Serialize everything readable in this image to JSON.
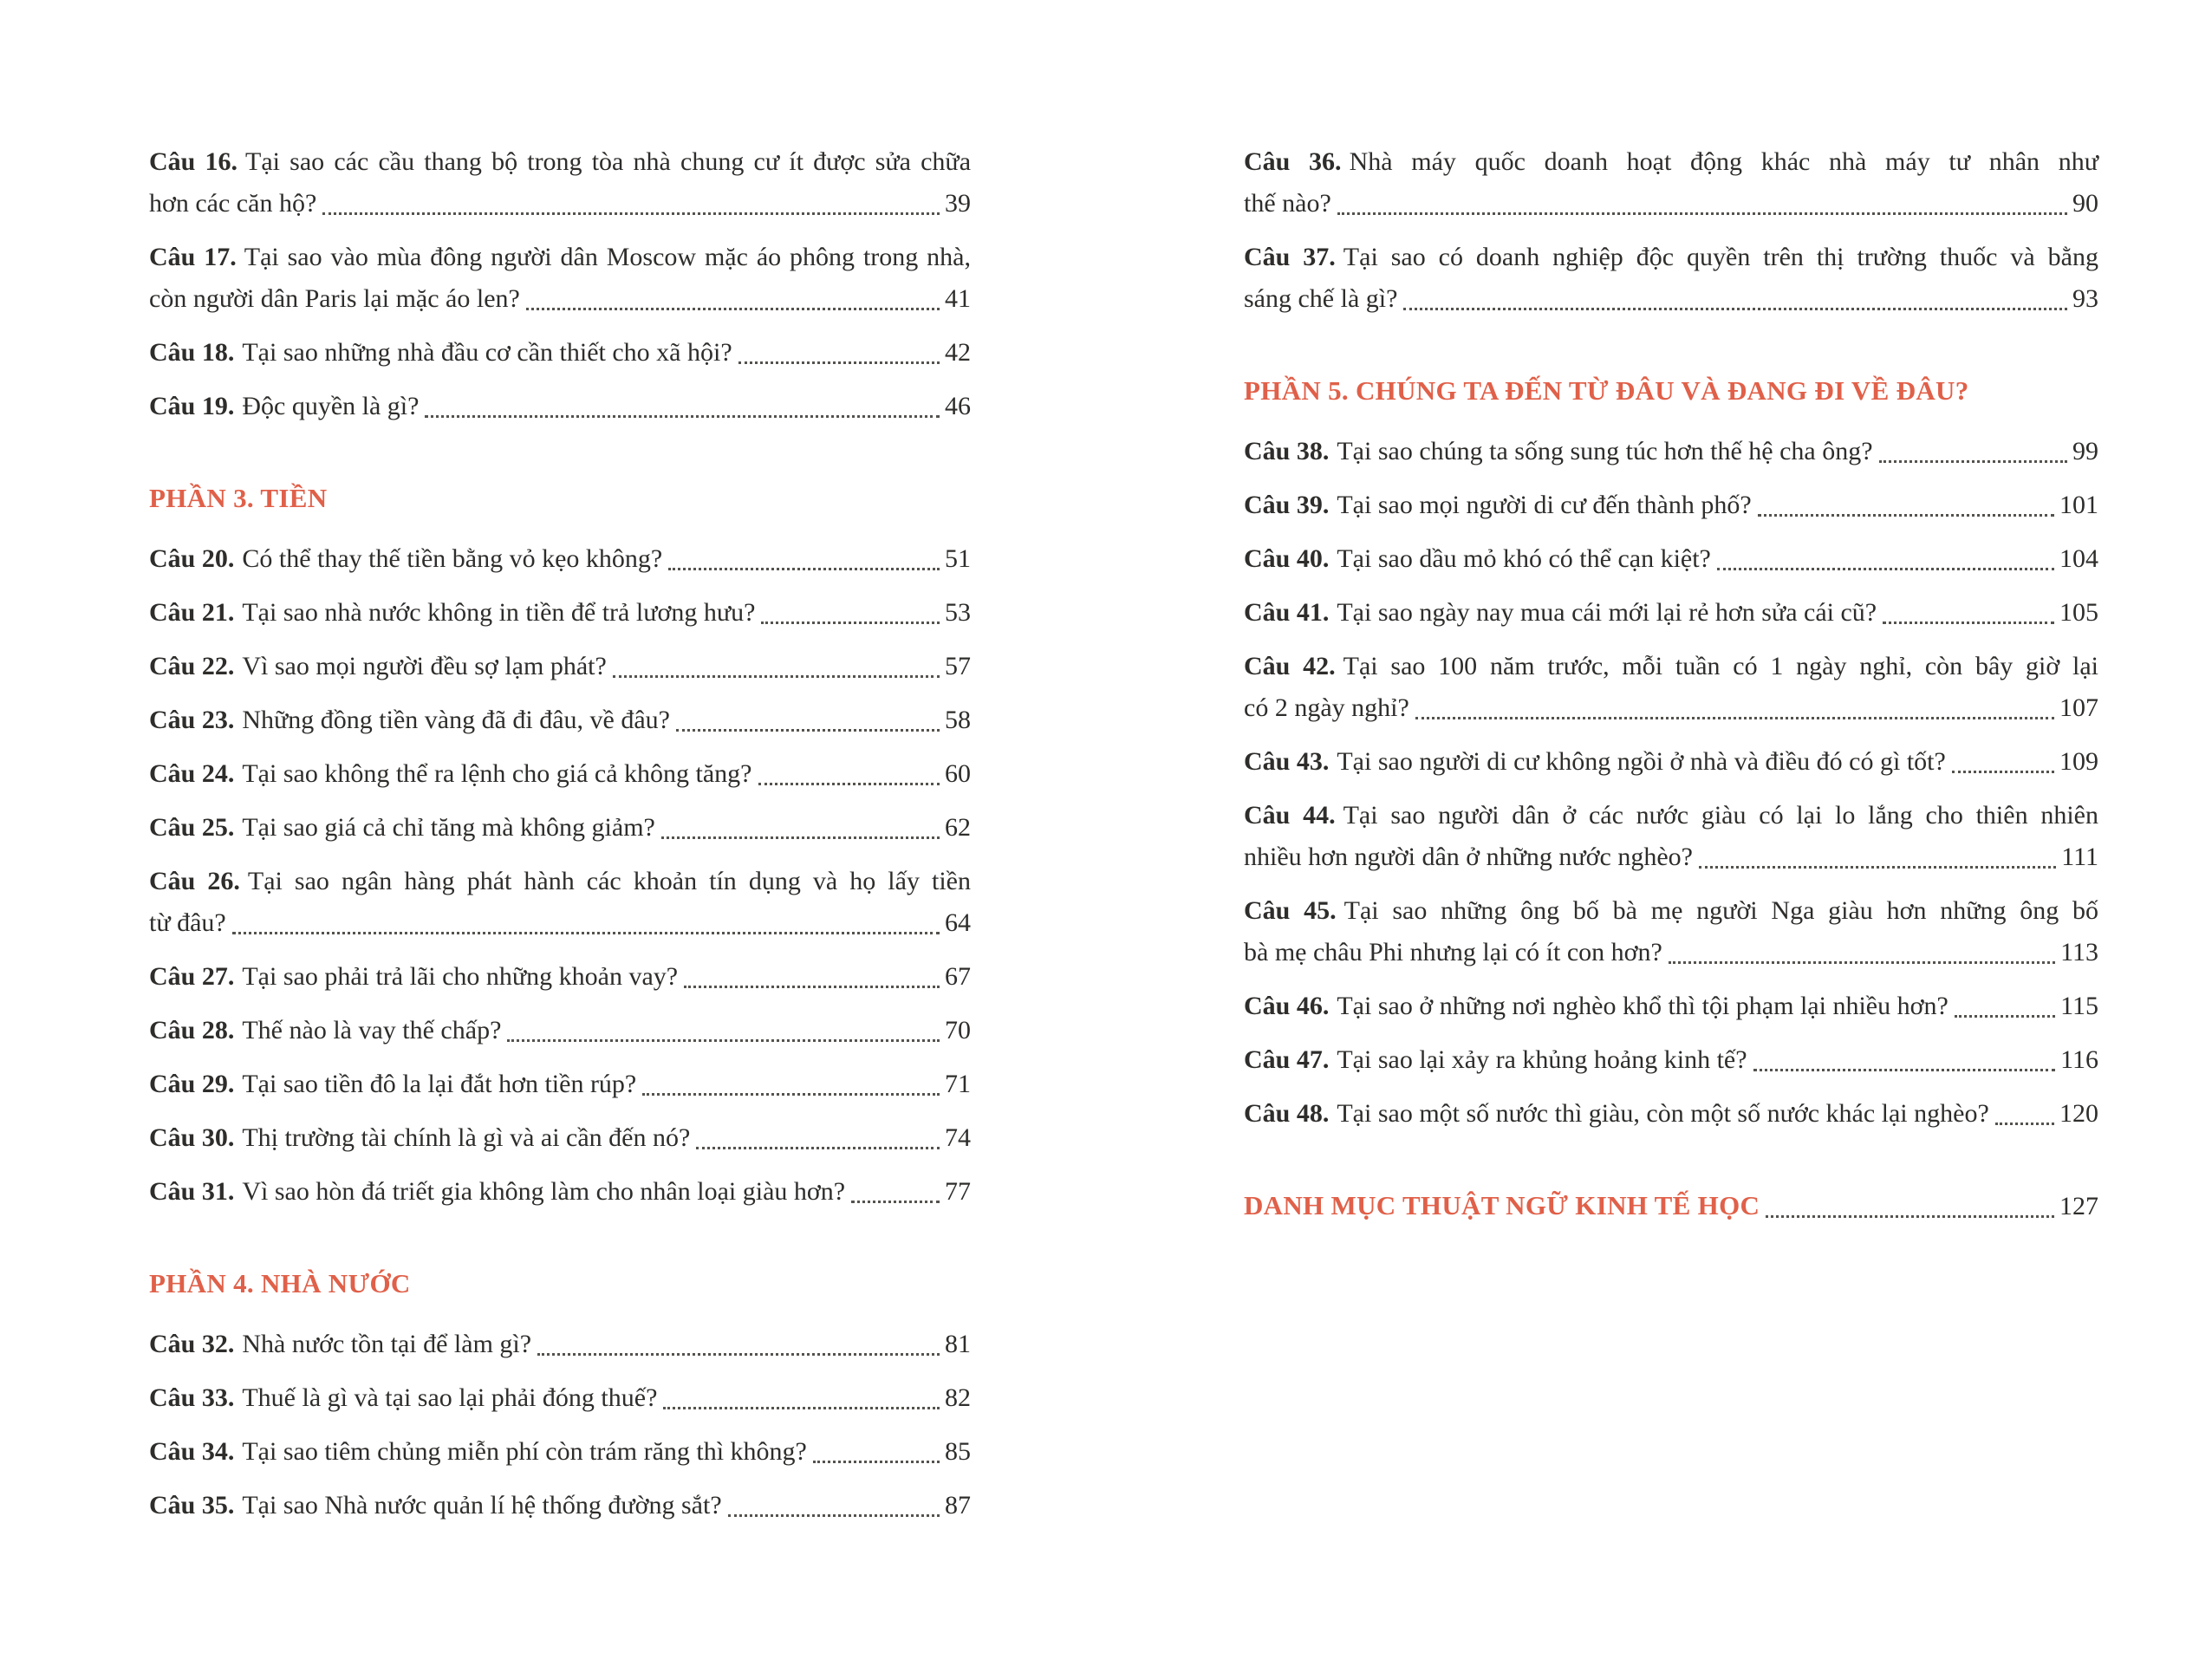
{
  "page": {
    "accent_color": "#e06049",
    "text_color": "#2e2d2b",
    "dot_color": "#55524e"
  },
  "columns": [
    {
      "side": "left",
      "blocks": [
        {
          "type": "entries",
          "items": [
            {
              "no": "Câu 16.",
              "lines": [
                "Tại sao các cầu thang bộ trong tòa nhà chung cư ít được sửa chữa",
                "hơn các căn hộ?"
              ],
              "page": "39"
            },
            {
              "no": "Câu 17.",
              "lines": [
                "Tại sao vào mùa đông người dân Moscow mặc áo phông trong nhà,",
                "còn người dân Paris lại mặc áo len?"
              ],
              "page": "41"
            },
            {
              "no": "Câu 18.",
              "lines": [
                "Tại sao những nhà đầu cơ cần thiết cho xã hội?"
              ],
              "page": "42"
            },
            {
              "no": "Câu 19.",
              "lines": [
                "Độc quyền là gì?"
              ],
              "page": "46"
            }
          ]
        },
        {
          "type": "section",
          "title": "PHẦN 3. TIỀN"
        },
        {
          "type": "entries",
          "items": [
            {
              "no": "Câu 20.",
              "lines": [
                "Có thể thay thế tiền bằng vỏ kẹo không?"
              ],
              "page": "51"
            },
            {
              "no": "Câu 21.",
              "lines": [
                "Tại sao nhà nước không in tiền để trả lương hưu?"
              ],
              "page": "53"
            },
            {
              "no": "Câu 22.",
              "lines": [
                "Vì sao mọi người đều sợ lạm phát?"
              ],
              "page": "57"
            },
            {
              "no": "Câu 23.",
              "lines": [
                "Những đồng tiền vàng đã đi đâu, về đâu?"
              ],
              "page": "58"
            },
            {
              "no": "Câu 24.",
              "lines": [
                "Tại sao không thể ra lệnh cho giá cả không tăng?"
              ],
              "page": "60"
            },
            {
              "no": "Câu 25.",
              "lines": [
                "Tại sao giá cả chỉ tăng mà không giảm?"
              ],
              "page": "62"
            },
            {
              "no": "Câu 26.",
              "lines": [
                "Tại sao ngân hàng phát hành các khoản tín dụng và họ lấy tiền",
                "từ đâu?"
              ],
              "page": "64"
            },
            {
              "no": "Câu 27.",
              "lines": [
                "Tại sao phải trả lãi cho những khoản vay?"
              ],
              "page": "67"
            },
            {
              "no": "Câu 28.",
              "lines": [
                "Thế nào là vay thế chấp?"
              ],
              "page": "70"
            },
            {
              "no": "Câu 29.",
              "lines": [
                "Tại sao tiền đô la lại đắt hơn tiền rúp?"
              ],
              "page": "71"
            },
            {
              "no": "Câu 30.",
              "lines": [
                "Thị trường tài chính là gì và ai cần đến nó?"
              ],
              "page": "74"
            },
            {
              "no": "Câu 31.",
              "lines": [
                "Vì sao hòn đá triết gia không làm cho nhân loại giàu hơn?"
              ],
              "page": "77"
            }
          ]
        },
        {
          "type": "section",
          "title": "PHẦN 4. NHÀ NƯỚC"
        },
        {
          "type": "entries",
          "items": [
            {
              "no": "Câu 32.",
              "lines": [
                "Nhà nước tồn tại để làm gì?"
              ],
              "page": "81"
            },
            {
              "no": "Câu 33.",
              "lines": [
                "Thuế là gì và tại sao lại phải đóng thuế?"
              ],
              "page": "82"
            },
            {
              "no": "Câu 34.",
              "lines": [
                "Tại sao tiêm chủng miễn phí còn trám răng thì không?"
              ],
              "page": "85"
            },
            {
              "no": "Câu 35.",
              "lines": [
                "Tại sao Nhà nước quản lí hệ thống đường sắt?"
              ],
              "page": "87"
            }
          ]
        }
      ]
    },
    {
      "side": "right",
      "blocks": [
        {
          "type": "entries",
          "items": [
            {
              "no": "Câu 36.",
              "lines": [
                "Nhà máy quốc doanh hoạt động khác nhà máy tư nhân như",
                "thế nào?"
              ],
              "page": "90"
            },
            {
              "no": "Câu 37.",
              "lines": [
                "Tại sao có doanh nghiệp độc quyền trên thị trường thuốc và bằng",
                "sáng chế là gì?"
              ],
              "page": "93"
            }
          ]
        },
        {
          "type": "section",
          "title": "PHẦN 5. CHÚNG TA ĐẾN TỪ ĐÂU VÀ ĐANG ĐI VỀ ĐÂU?"
        },
        {
          "type": "entries",
          "items": [
            {
              "no": "Câu 38.",
              "lines": [
                "Tại sao chúng ta sống sung túc hơn thế hệ cha ông?"
              ],
              "page": "99"
            },
            {
              "no": "Câu 39.",
              "lines": [
                "Tại sao mọi người di cư đến thành phố?"
              ],
              "page": "101"
            },
            {
              "no": "Câu 40.",
              "lines": [
                "Tại sao dầu mỏ khó có thể cạn kiệt?"
              ],
              "page": "104"
            },
            {
              "no": "Câu 41.",
              "lines": [
                "Tại sao ngày nay mua cái mới lại rẻ hơn sửa cái cũ?"
              ],
              "page": "105"
            },
            {
              "no": "Câu 42.",
              "lines": [
                "Tại sao 100 năm trước, mỗi tuần có 1 ngày nghỉ, còn bây giờ lại",
                "có 2 ngày nghỉ?"
              ],
              "page": "107"
            },
            {
              "no": "Câu 43.",
              "lines": [
                "Tại sao người di cư không ngồi ở nhà và điều đó có gì tốt?"
              ],
              "page": "109"
            },
            {
              "no": "Câu 44.",
              "lines": [
                "Tại sao người dân ở các nước giàu có lại lo lắng cho thiên nhiên",
                "nhiều hơn người dân ở những nước nghèo?"
              ],
              "page": "111"
            },
            {
              "no": "Câu 45.",
              "lines": [
                "Tại sao những ông bố bà mẹ người Nga giàu hơn những ông bố",
                "bà mẹ châu Phi nhưng lại có ít con hơn?"
              ],
              "page": "113"
            },
            {
              "no": "Câu 46.",
              "lines": [
                "Tại sao ở những nơi nghèo khổ thì tội phạm lại nhiều hơn?"
              ],
              "page": "115"
            },
            {
              "no": "Câu 47.",
              "lines": [
                "Tại sao lại xảy ra khủng hoảng kinh tế?"
              ],
              "page": "116"
            },
            {
              "no": "Câu 48.",
              "lines": [
                "Tại sao một số nước thì giàu, còn một số nước khác lại nghèo?"
              ],
              "page": "120"
            }
          ]
        },
        {
          "type": "section_entry",
          "title": "DANH MỤC THUẬT NGỮ KINH TẾ HỌC",
          "page": "127"
        }
      ]
    }
  ]
}
